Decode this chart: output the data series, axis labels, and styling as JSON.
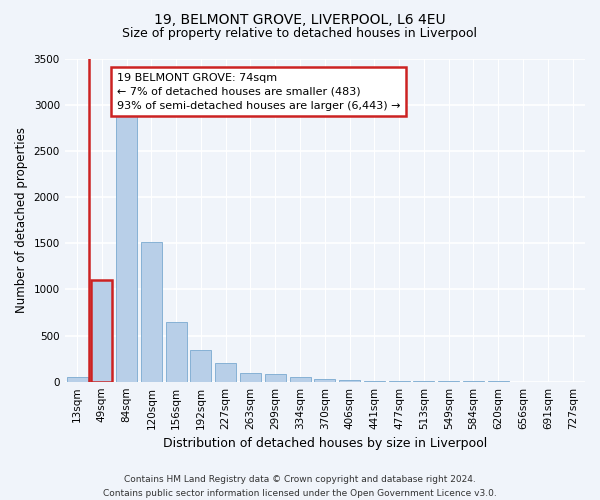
{
  "title": "19, BELMONT GROVE, LIVERPOOL, L6 4EU",
  "subtitle": "Size of property relative to detached houses in Liverpool",
  "xlabel": "Distribution of detached houses by size in Liverpool",
  "ylabel": "Number of detached properties",
  "categories": [
    "13sqm",
    "49sqm",
    "84sqm",
    "120sqm",
    "156sqm",
    "192sqm",
    "227sqm",
    "263sqm",
    "299sqm",
    "334sqm",
    "370sqm",
    "406sqm",
    "441sqm",
    "477sqm",
    "513sqm",
    "549sqm",
    "584sqm",
    "620sqm",
    "656sqm",
    "691sqm",
    "727sqm"
  ],
  "values": [
    55,
    1100,
    2950,
    1510,
    645,
    340,
    205,
    95,
    80,
    50,
    25,
    15,
    10,
    5,
    5,
    5,
    2,
    2,
    0,
    0,
    0
  ],
  "bar_color": "#b8cfe8",
  "bar_edge_color": "#7aaad0",
  "highlight_bar_color": "#cc2222",
  "annotation_text": "19 BELMONT GROVE: 74sqm\n← 7% of detached houses are smaller (483)\n93% of semi-detached houses are larger (6,443) →",
  "annotation_box_color": "#ffffff",
  "annotation_box_edge_color": "#cc2222",
  "ylim": [
    0,
    3500
  ],
  "yticks": [
    0,
    500,
    1000,
    1500,
    2000,
    2500,
    3000,
    3500
  ],
  "background_color": "#f0f4fa",
  "plot_bg_color": "#f0f4fa",
  "grid_color": "#ffffff",
  "footnote": "Contains HM Land Registry data © Crown copyright and database right 2024.\nContains public sector information licensed under the Open Government Licence v3.0.",
  "title_fontsize": 10,
  "subtitle_fontsize": 9,
  "xlabel_fontsize": 9,
  "ylabel_fontsize": 8.5,
  "tick_fontsize": 7.5,
  "annotation_fontsize": 8,
  "footnote_fontsize": 6.5
}
